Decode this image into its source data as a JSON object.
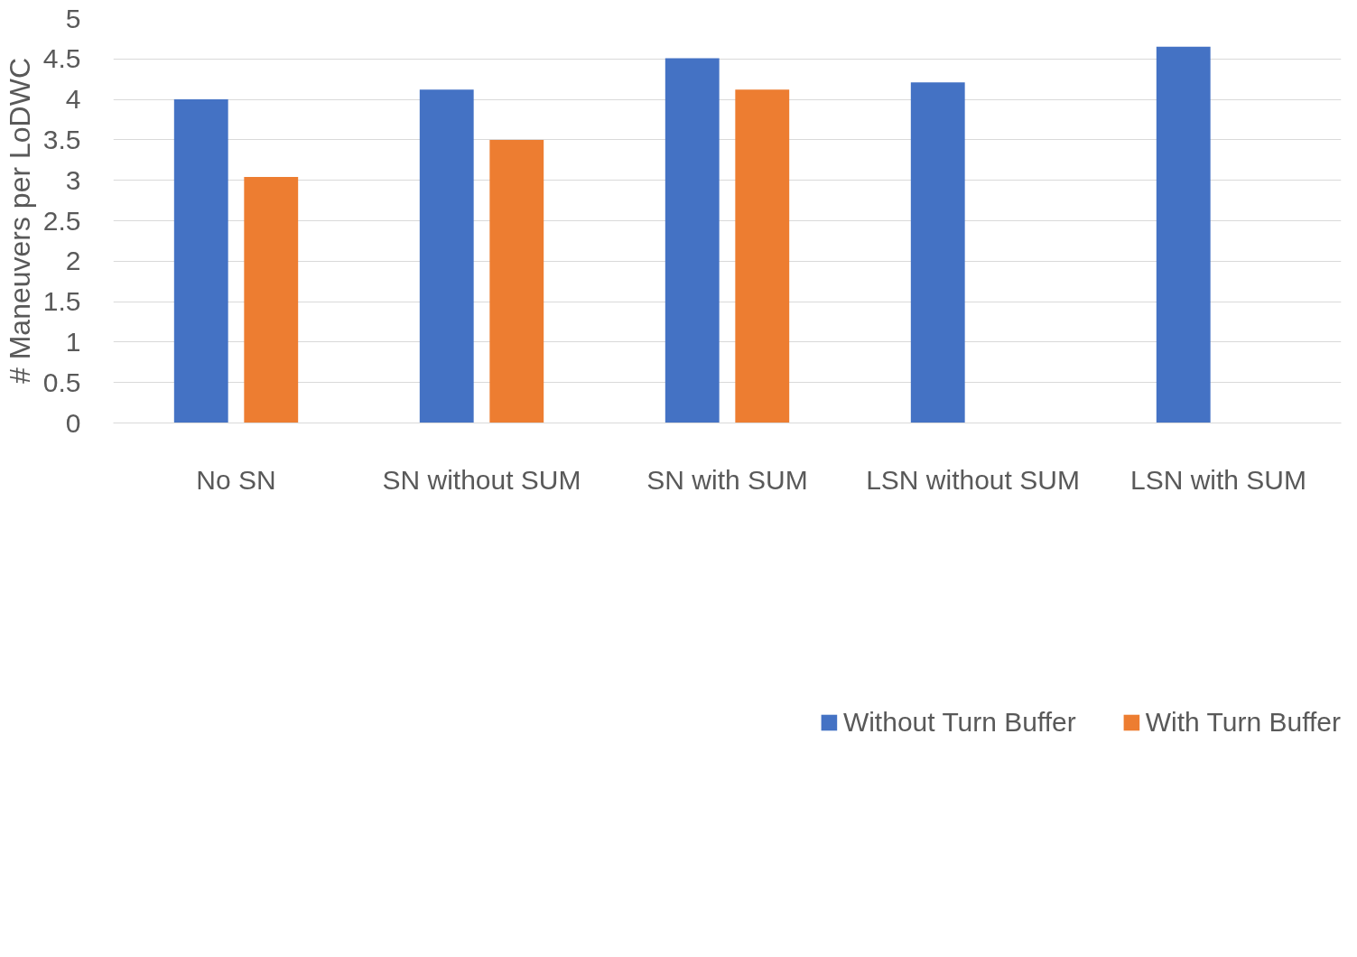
{
  "chart_data": {
    "type": "bar",
    "ylabel": "# Maneuvers per LoDWC",
    "categories": [
      "No SN",
      "SN without SUM",
      "SN with SUM",
      "LSN without SUM",
      "LSN with SUM"
    ],
    "series": [
      {
        "name": "Without Turn Buffer",
        "color": "#4472c4",
        "values": [
          4.0,
          4.12,
          4.51,
          4.21,
          4.65
        ]
      },
      {
        "name": "With Turn Buffer",
        "color": "#ed7d31",
        "values": [
          3.04,
          3.5,
          4.12,
          null,
          null
        ]
      }
    ],
    "ylim": [
      0,
      5
    ],
    "yticks": [
      0,
      0.5,
      1,
      1.5,
      2,
      2.5,
      3,
      3.5,
      4,
      4.5,
      5
    ],
    "grid": "y",
    "legend": "bottom"
  }
}
